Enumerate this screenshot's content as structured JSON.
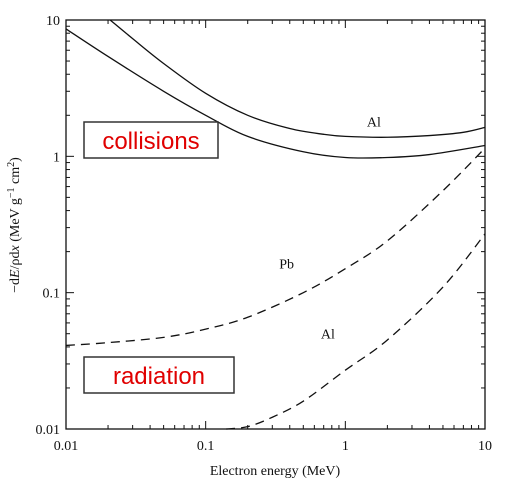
{
  "chart_data": {
    "type": "line",
    "title": "",
    "xlabel": "Electron energy (MeV)",
    "ylabel_parts": [
      "−d",
      "E",
      "/ρd",
      "x",
      " (MeV g",
      "−1",
      " cm",
      "2",
      ")"
    ],
    "xscale": "log",
    "yscale": "log",
    "xlim": [
      0.01,
      10
    ],
    "ylim": [
      0.01,
      10
    ],
    "x_ticks": [
      0.01,
      0.1,
      1,
      10
    ],
    "x_tick_labels": [
      "0.01",
      "0.1",
      "1",
      "10"
    ],
    "y_ticks": [
      0.01,
      0.1,
      1,
      10
    ],
    "y_tick_labels": [
      "0.01",
      "0.1",
      "1",
      "10"
    ],
    "grid": false,
    "legend": "none",
    "series": [
      {
        "group": "collisions",
        "label": "Al",
        "style": "solid",
        "x": [
          0.0207,
          0.03,
          0.05,
          0.1,
          0.2,
          0.4,
          0.7,
          1,
          2,
          4,
          7,
          10
        ],
        "y": [
          10,
          7.3,
          4.8,
          2.9,
          2.0,
          1.6,
          1.45,
          1.4,
          1.38,
          1.42,
          1.5,
          1.63
        ]
      },
      {
        "group": "collisions",
        "label": "",
        "style": "solid",
        "x": [
          0.01,
          0.02,
          0.05,
          0.1,
          0.2,
          0.5,
          1,
          2,
          4,
          10
        ],
        "y": [
          8.6,
          5.4,
          3.0,
          2.0,
          1.4,
          1.08,
          0.98,
          0.98,
          1.03,
          1.2
        ]
      },
      {
        "group": "radiation",
        "label": "Pb",
        "style": "dashed",
        "x": [
          0.01,
          0.02,
          0.05,
          0.1,
          0.2,
          0.5,
          1,
          2,
          5,
          10
        ],
        "y": [
          0.041,
          0.043,
          0.047,
          0.054,
          0.066,
          0.1,
          0.15,
          0.24,
          0.56,
          1.15
        ]
      },
      {
        "group": "radiation",
        "label": "Al",
        "style": "dashed",
        "x": [
          0.14,
          0.2,
          0.3,
          0.5,
          1,
          2,
          5,
          10
        ],
        "y": [
          0.01,
          0.0104,
          0.0122,
          0.016,
          0.027,
          0.045,
          0.11,
          0.27
        ]
      }
    ],
    "annotations": [
      {
        "text": "collisions",
        "color": "#e00000"
      },
      {
        "text": "radiation",
        "color": "#e00000"
      }
    ]
  }
}
